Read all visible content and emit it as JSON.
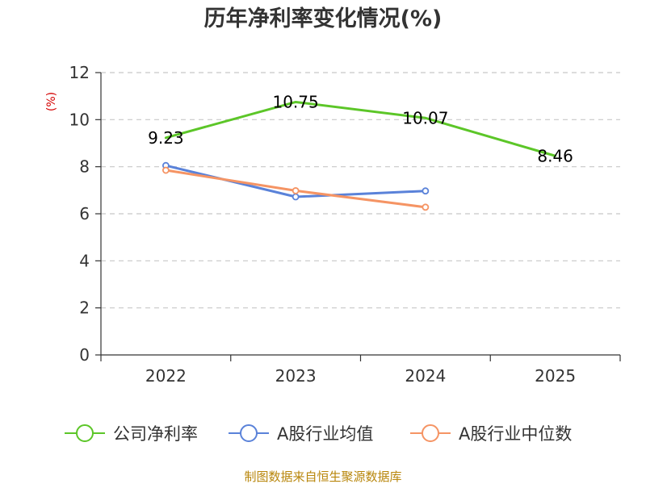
{
  "chart_data": {
    "type": "line",
    "title": "历年净利率变化情况(%)",
    "ylabel": "(%)",
    "xlabel": "",
    "categories": [
      "2022",
      "2023",
      "2024",
      "2025"
    ],
    "ylim": [
      0,
      12
    ],
    "yticks": [
      0,
      2,
      4,
      6,
      8,
      10,
      12
    ],
    "grid": true,
    "legend_position": "bottom",
    "series": [
      {
        "name": "公司净利率",
        "color": "#5cc628",
        "values": [
          9.23,
          10.75,
          10.07,
          8.46
        ],
        "labels": [
          "9.23",
          "10.75",
          "10.07",
          "8.46"
        ],
        "markers": false
      },
      {
        "name": "A股行业均值",
        "color": "#5a82d9",
        "values": [
          8.05,
          6.72,
          6.97,
          null
        ],
        "markers": true
      },
      {
        "name": "A股行业中位数",
        "color": "#f59464",
        "values": [
          7.85,
          6.98,
          6.28,
          null
        ],
        "markers": true
      }
    ]
  },
  "source": "制图数据来自恒生聚源数据库"
}
